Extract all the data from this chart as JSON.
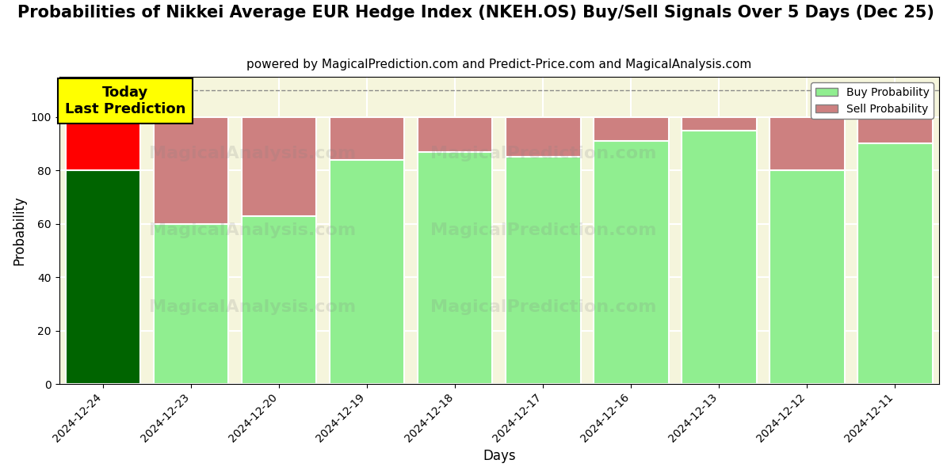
{
  "title": "Probabilities of Nikkei Average EUR Hedge Index (NKEH.OS) Buy/Sell Signals Over 5 Days (Dec 25)",
  "subtitle": "powered by MagicalPrediction.com and Predict-Price.com and MagicalAnalysis.com",
  "xlabel": "Days",
  "ylabel": "Probability",
  "categories": [
    "2024-12-24",
    "2024-12-23",
    "2024-12-20",
    "2024-12-19",
    "2024-12-18",
    "2024-12-17",
    "2024-12-16",
    "2024-12-13",
    "2024-12-12",
    "2024-12-11"
  ],
  "buy_values": [
    80,
    60,
    63,
    84,
    87,
    85,
    91,
    95,
    80,
    90
  ],
  "sell_values": [
    20,
    40,
    37,
    16,
    13,
    15,
    9,
    5,
    20,
    10
  ],
  "today_buy_color": "#006400",
  "today_sell_color": "#FF0000",
  "buy_color": "#90EE90",
  "sell_color": "#CD8080",
  "today_annotation_bg": "#FFFF00",
  "today_annotation_text": "Today\nLast Prediction",
  "ylim": [
    0,
    115
  ],
  "yticks": [
    0,
    20,
    40,
    60,
    80,
    100
  ],
  "dashed_line_y": 110,
  "legend_buy_label": "Buy Probability",
  "legend_sell_label": "Sell Probability",
  "title_fontsize": 15,
  "subtitle_fontsize": 11,
  "bar_width": 0.85,
  "bg_color": "#F5F5DC",
  "watermark1": "MagicalAnalysis.com",
  "watermark2": "MagicalPrediction.com",
  "watermark3": "MagicalAnalysis.com",
  "watermark4": "MagicalPrediction.com"
}
